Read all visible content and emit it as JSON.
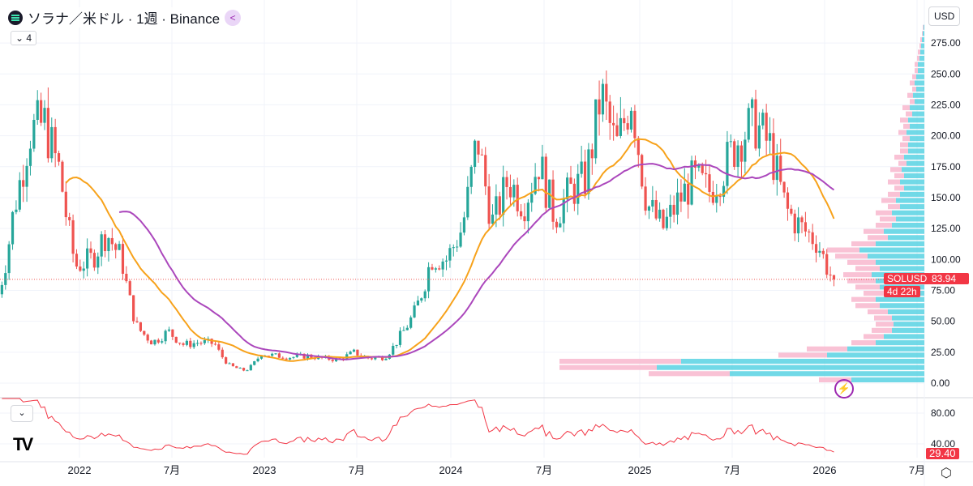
{
  "header": {
    "title": "ソラナ／米ドル · 1週 · Binance",
    "indicator_count": "4",
    "currency": "USD"
  },
  "price_tag": {
    "symbol": "SOLUSD",
    "price": "83.94",
    "countdown": "4d 22h"
  },
  "rsi_tag": "29.40",
  "colors": {
    "up": "#26a69a",
    "down": "#ef5350",
    "ma_fast": "#f7a21b",
    "ma_slow": "#ab47bc",
    "rsi": "#f23645",
    "vp_up": "#4dd0e1",
    "vp_down": "#f8bbd0"
  },
  "chart_data": {
    "type": "candlestick",
    "title": "ソラナ／米ドル · 1週 · Binance",
    "start": "2021-08",
    "monthly_close": [
      72,
      141,
      203,
      210,
      170,
      95,
      100,
      122,
      100,
      45,
      33,
      42,
      31,
      33,
      32,
      14,
      10,
      24,
      22,
      21,
      22,
      20,
      19,
      25,
      20,
      21,
      38,
      59,
      101,
      100,
      125,
      200,
      130,
      165,
      145,
      180,
      135,
      155,
      165,
      235,
      190,
      235,
      145,
      125,
      147,
      165,
      155,
      175,
      200,
      210,
      190,
      140,
      125,
      115,
      84
    ],
    "last_close": 83.94,
    "ma_periods": [
      20,
      35
    ],
    "ylim": [
      0,
      290
    ],
    "y_ticks": [
      "0.00",
      "25.00",
      "50.00",
      "75.00",
      "100.00",
      "125.00",
      "150.00",
      "175.00",
      "200.00",
      "225.00",
      "250.00",
      "275.00"
    ],
    "x_ticks": [
      "2022",
      "7月",
      "2023",
      "7月",
      "2024",
      "7月",
      "2025",
      "7月",
      "2026",
      "7月"
    ],
    "rsi": {
      "ticks": [
        "40.00",
        "80.00"
      ],
      "last": 29.4
    },
    "volume_profile": {
      "bin_size": 5,
      "up": [
        90,
        240,
        330,
        300,
        120,
        95,
        60,
        50,
        40,
        38,
        40,
        45,
        55,
        60,
        50,
        55,
        60,
        65,
        55,
        60,
        70,
        80,
        60,
        45,
        50,
        40,
        35,
        40,
        30,
        35,
        30,
        25,
        30,
        25,
        28,
        22,
        25,
        20,
        20,
        18,
        22,
        18,
        20,
        15,
        18,
        12,
        14,
        10,
        12,
        10,
        8,
        8,
        6,
        5,
        4,
        3,
        2,
        1
      ],
      "down": [
        40,
        100,
        120,
        150,
        60,
        50,
        30,
        25,
        25,
        22,
        22,
        25,
        30,
        30,
        25,
        30,
        35,
        35,
        30,
        35,
        40,
        40,
        30,
        25,
        25,
        20,
        20,
        20,
        15,
        18,
        15,
        12,
        15,
        12,
        14,
        10,
        12,
        10,
        10,
        9,
        10,
        8,
        10,
        8,
        9,
        6,
        7,
        5,
        6,
        5,
        4,
        4,
        3,
        3,
        2,
        2,
        1,
        1
      ]
    }
  }
}
